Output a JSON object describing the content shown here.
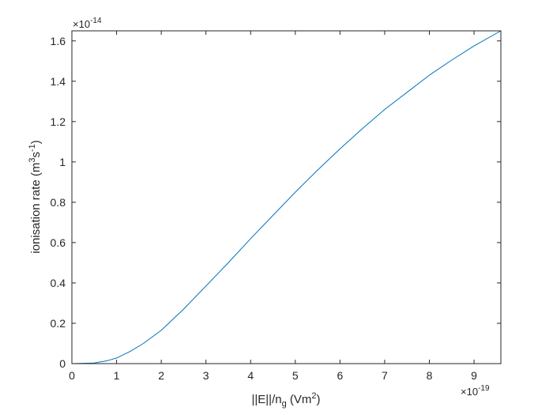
{
  "chart_data": {
    "type": "line",
    "title": "",
    "xlabel": {
      "prefix": "||E||/n",
      "sub": "g",
      "suffix": " (Vm",
      "sup": "2",
      "close": ")"
    },
    "ylabel": {
      "prefix": "ionisation rate (m",
      "sup1": "3",
      "mid": "s",
      "sup2": "-1",
      "close": ")"
    },
    "x_multiplier": {
      "base": "×10",
      "exp": "-19"
    },
    "y_multiplier": {
      "base": "×10",
      "exp": "-14"
    },
    "xlim": [
      0,
      9.6
    ],
    "ylim": [
      0,
      1.65
    ],
    "x_ticks": [
      0,
      1,
      2,
      3,
      4,
      5,
      6,
      7,
      8,
      9
    ],
    "x_tick_labels": [
      "0",
      "1",
      "2",
      "3",
      "4",
      "5",
      "6",
      "7",
      "8",
      "9"
    ],
    "y_ticks": [
      0,
      0.2,
      0.4,
      0.6,
      0.8,
      1.0,
      1.2,
      1.4,
      1.6
    ],
    "y_tick_labels": [
      "0",
      "0.2",
      "0.4",
      "0.6",
      "0.8",
      "1",
      "1.2",
      "1.4",
      "1.6"
    ],
    "grid": false,
    "line_color": "#0072BD",
    "axis_color": "#262626",
    "series": [
      {
        "x": [
          0,
          0.5,
          0.8,
          1.0,
          1.3,
          1.6,
          2.0,
          2.5,
          3.0,
          3.5,
          4.0,
          4.5,
          5.0,
          5.5,
          6.0,
          6.5,
          7.0,
          7.5,
          8.0,
          8.5,
          9.0,
          9.6
        ],
        "y": [
          0,
          0.003,
          0.015,
          0.028,
          0.06,
          0.1,
          0.165,
          0.27,
          0.385,
          0.5,
          0.62,
          0.735,
          0.85,
          0.96,
          1.065,
          1.165,
          1.26,
          1.345,
          1.43,
          1.505,
          1.575,
          1.65
        ]
      }
    ]
  }
}
